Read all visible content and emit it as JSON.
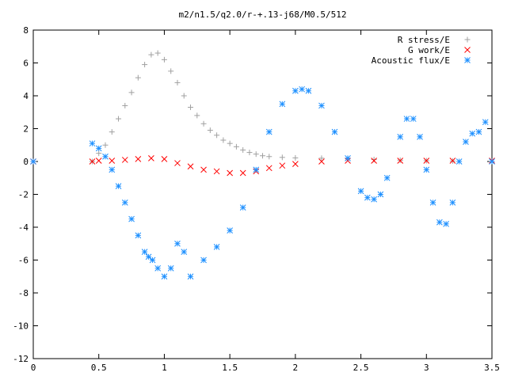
{
  "chart_data": {
    "type": "scatter",
    "title": "m2/n1.5/q2.0/r-+.13-j68/M0.5/512",
    "xlabel": "",
    "ylabel": "",
    "xlim": [
      0,
      3.5
    ],
    "ylim": [
      -12,
      8
    ],
    "xticks": [
      "0",
      "0.5",
      "1",
      "1.5",
      "2",
      "2.5",
      "3",
      "3.5"
    ],
    "yticks": [
      "-12",
      "-10",
      "-8",
      "-6",
      "-4",
      "-2",
      "0",
      "2",
      "4",
      "6",
      "8"
    ],
    "grid": false,
    "legend_position": "top-right",
    "series": [
      {
        "name": "R stress/E",
        "marker": "plus",
        "color": "#a0a0a0",
        "x": [
          0.0,
          0.45,
          0.5,
          0.55,
          0.6,
          0.65,
          0.7,
          0.75,
          0.8,
          0.85,
          0.9,
          0.95,
          1.0,
          1.05,
          1.1,
          1.15,
          1.2,
          1.25,
          1.3,
          1.35,
          1.4,
          1.45,
          1.5,
          1.55,
          1.6,
          1.65,
          1.7,
          1.75,
          1.8,
          1.9,
          2.0,
          2.2,
          2.4,
          2.6,
          2.8,
          3.0,
          3.2,
          3.5
        ],
        "y": [
          0.0,
          0.0,
          0.5,
          1.0,
          1.8,
          2.6,
          3.4,
          4.2,
          5.1,
          5.9,
          6.5,
          6.6,
          6.2,
          5.5,
          4.8,
          4.0,
          3.3,
          2.8,
          2.3,
          1.9,
          1.6,
          1.3,
          1.1,
          0.9,
          0.7,
          0.55,
          0.45,
          0.35,
          0.3,
          0.25,
          0.22,
          0.2,
          0.18,
          0.12,
          0.08,
          0.05,
          0.03,
          0.0
        ]
      },
      {
        "name": "G work/E",
        "marker": "cross",
        "color": "#ff0000",
        "x": [
          0.0,
          0.45,
          0.5,
          0.6,
          0.7,
          0.8,
          0.9,
          1.0,
          1.1,
          1.2,
          1.3,
          1.4,
          1.5,
          1.6,
          1.7,
          1.8,
          1.9,
          2.0,
          2.2,
          2.4,
          2.6,
          2.8,
          3.0,
          3.2,
          3.5
        ],
        "y": [
          0.0,
          0.0,
          0.05,
          0.05,
          0.1,
          0.15,
          0.2,
          0.15,
          -0.1,
          -0.3,
          -0.5,
          -0.6,
          -0.7,
          -0.7,
          -0.6,
          -0.4,
          -0.25,
          -0.15,
          0.0,
          0.05,
          0.05,
          0.05,
          0.05,
          0.05,
          0.05
        ]
      },
      {
        "name": "Acoustic flux/E",
        "marker": "star",
        "color": "#1e90ff",
        "x": [
          0.0,
          0.45,
          0.5,
          0.55,
          0.6,
          0.65,
          0.7,
          0.75,
          0.8,
          0.85,
          0.88,
          0.91,
          0.95,
          1.0,
          1.05,
          1.1,
          1.15,
          1.2,
          1.3,
          1.4,
          1.5,
          1.6,
          1.7,
          1.8,
          1.9,
          2.0,
          2.05,
          2.1,
          2.2,
          2.3,
          2.4,
          2.5,
          2.55,
          2.6,
          2.65,
          2.7,
          2.8,
          2.85,
          2.9,
          2.95,
          3.0,
          3.05,
          3.1,
          3.15,
          3.2,
          3.25,
          3.3,
          3.35,
          3.4,
          3.45,
          3.5
        ],
        "y": [
          0.0,
          1.1,
          0.8,
          0.3,
          -0.5,
          -1.5,
          -2.5,
          -3.5,
          -4.5,
          -5.5,
          -5.8,
          -6.0,
          -6.5,
          -7.0,
          -6.5,
          -5.0,
          -5.5,
          -7.0,
          -6.0,
          -5.2,
          -4.2,
          -2.8,
          -0.5,
          1.8,
          3.5,
          4.3,
          4.4,
          4.3,
          3.4,
          1.8,
          0.2,
          -1.8,
          -2.2,
          -2.3,
          -2.0,
          -1.0,
          1.5,
          2.6,
          2.6,
          1.5,
          -0.5,
          -2.5,
          -3.7,
          -3.8,
          -2.5,
          0.0,
          1.2,
          1.7,
          1.8,
          2.4,
          0.0
        ]
      }
    ]
  }
}
